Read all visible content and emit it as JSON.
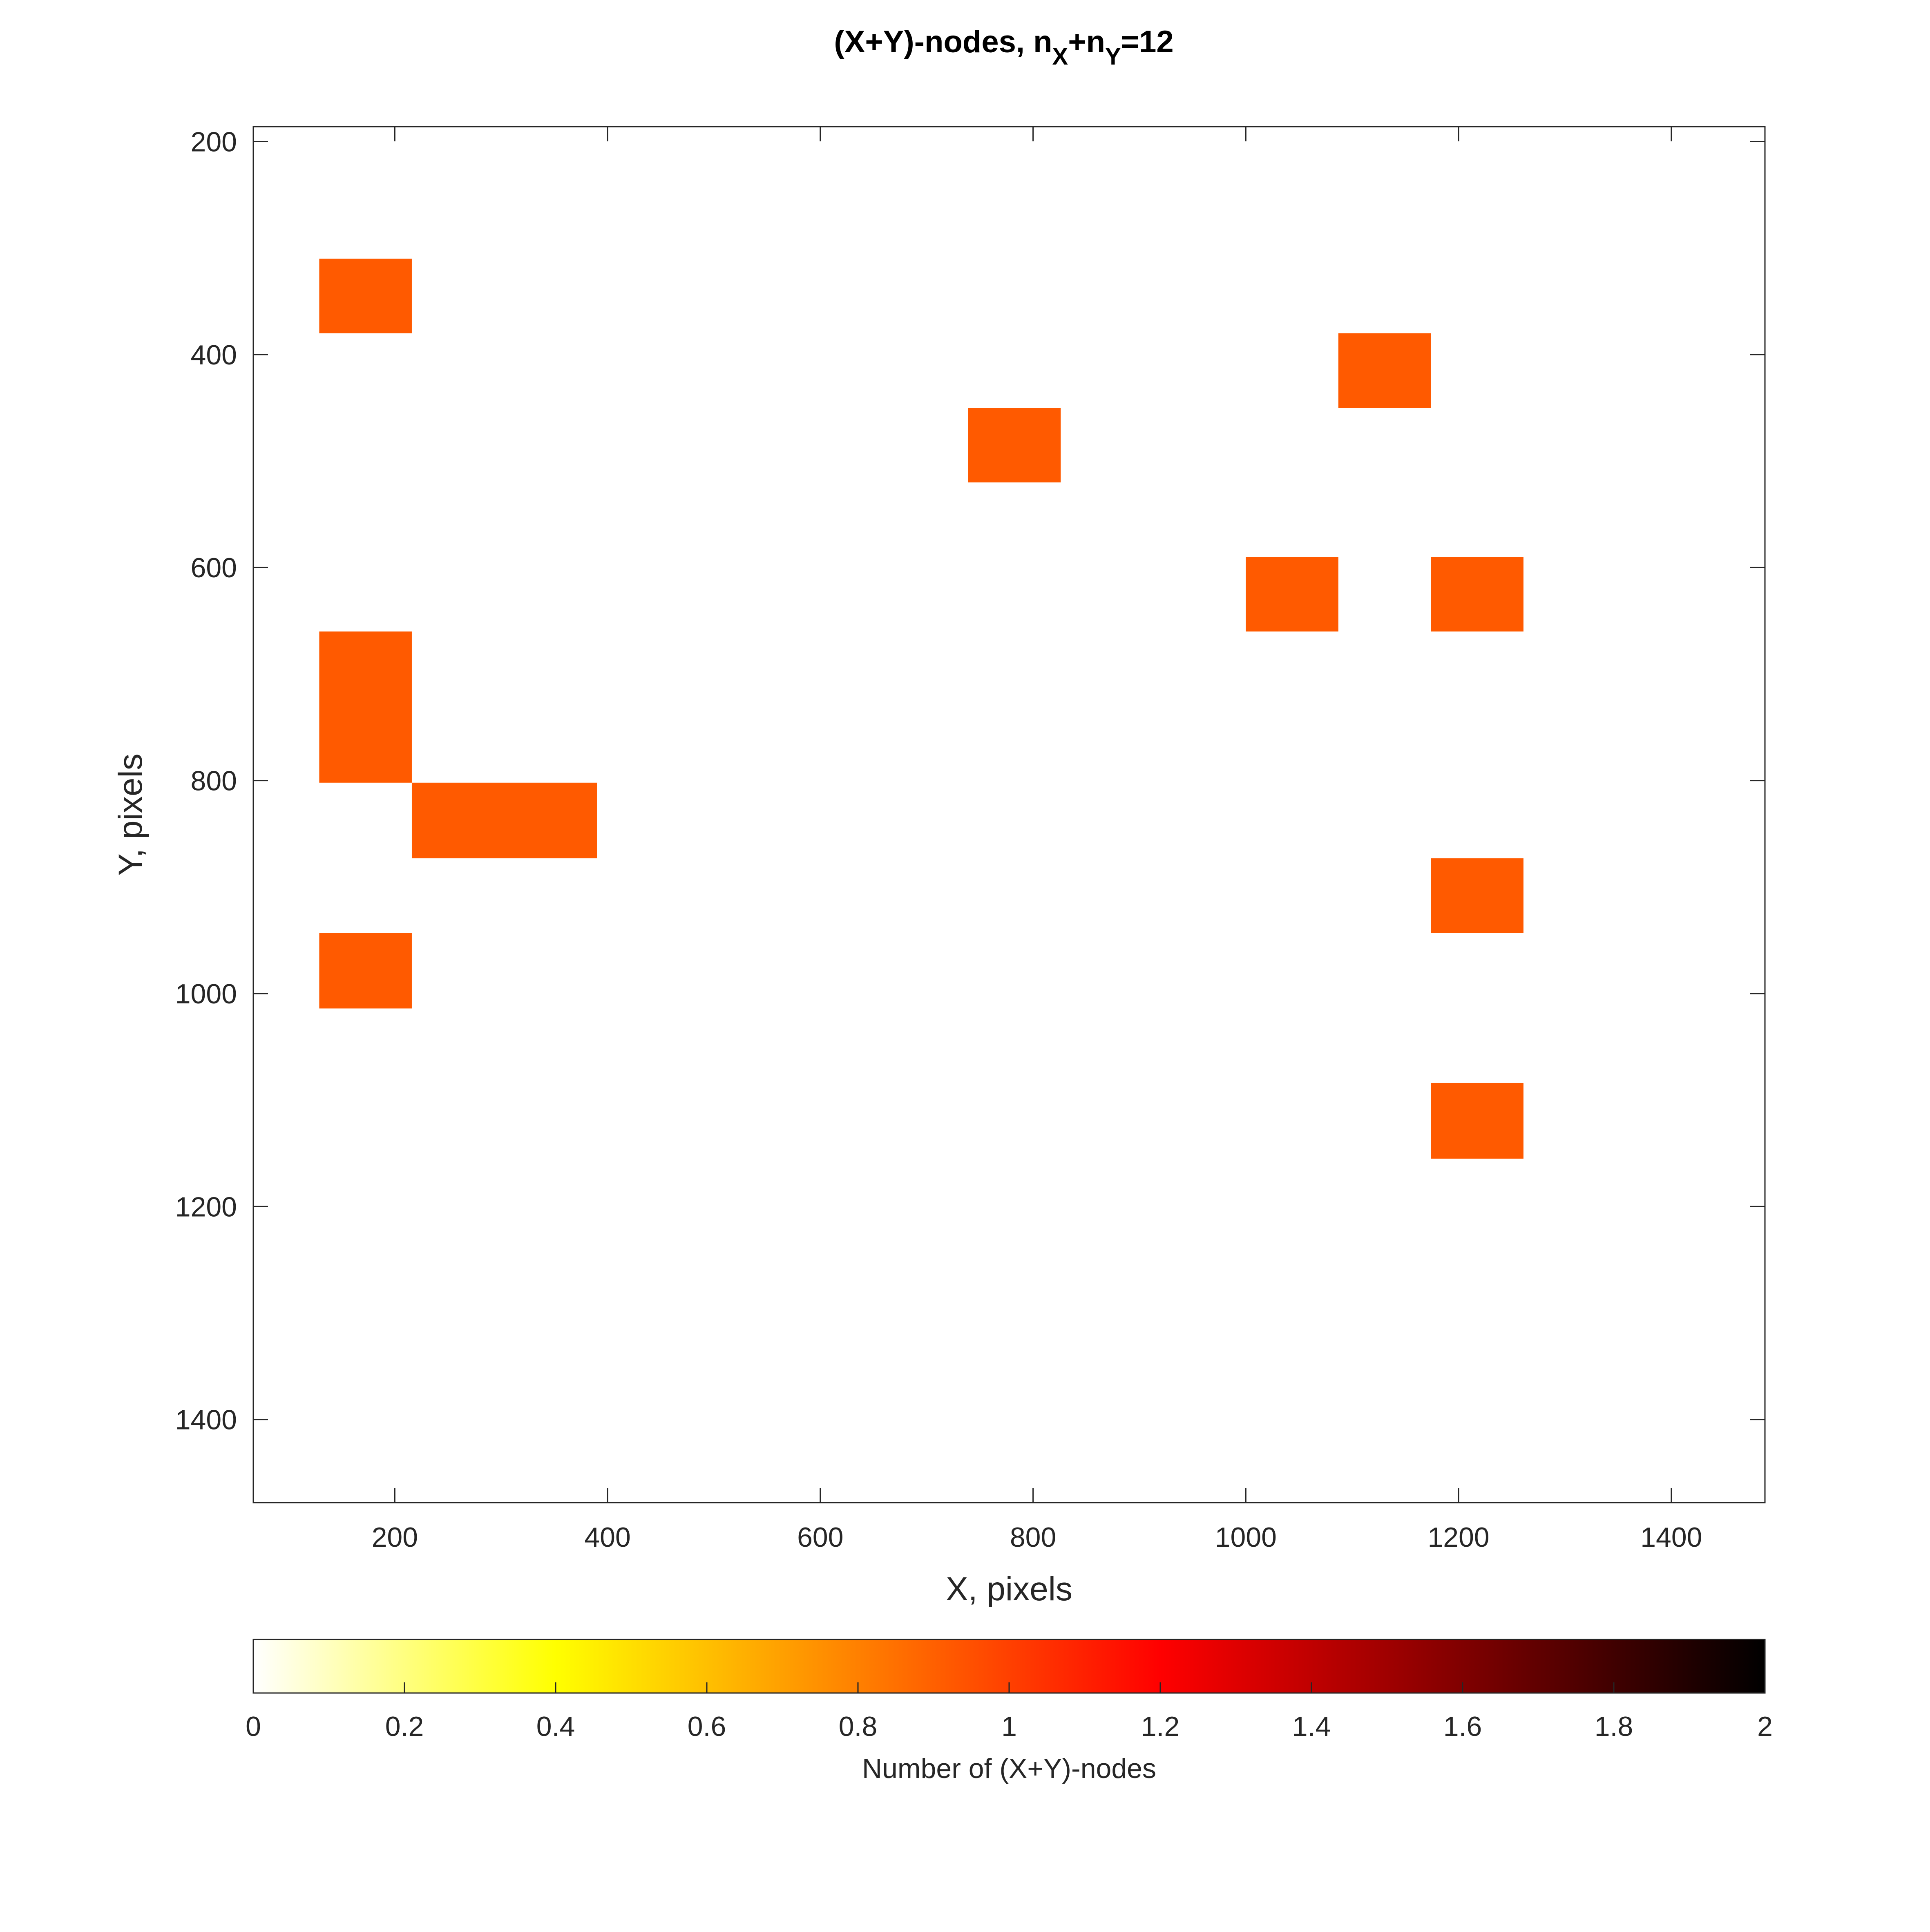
{
  "chart_data": {
    "type": "heatmap",
    "title": {
      "prefix": "(X+Y)-nodes, n",
      "sub1": "X",
      "mid": "+n",
      "sub2": "Y",
      "suffix": "=12"
    },
    "xlabel": "X, pixels",
    "ylabel": "Y, pixels",
    "xlim": [
      67,
      1488
    ],
    "ylim": [
      186,
      1478
    ],
    "y_reversed": true,
    "xticks": [
      200,
      400,
      600,
      800,
      1000,
      1200,
      1400
    ],
    "yticks": [
      200,
      400,
      600,
      800,
      1000,
      1200,
      1400
    ],
    "grid": false,
    "cells": [
      {
        "x": [
          129,
          216
        ],
        "y": [
          310,
          380
        ],
        "value": 1
      },
      {
        "x": [
          739,
          826
        ],
        "y": [
          450,
          520
        ],
        "value": 1
      },
      {
        "x": [
          1087,
          1174
        ],
        "y": [
          380,
          450
        ],
        "value": 1
      },
      {
        "x": [
          1000,
          1087
        ],
        "y": [
          590,
          660
        ],
        "value": 1
      },
      {
        "x": [
          1174,
          1261
        ],
        "y": [
          590,
          660
        ],
        "value": 1
      },
      {
        "x": [
          129,
          216
        ],
        "y": [
          660,
          802
        ],
        "value": 1
      },
      {
        "x": [
          216,
          390
        ],
        "y": [
          802,
          873
        ],
        "value": 1
      },
      {
        "x": [
          1174,
          1261
        ],
        "y": [
          873,
          943
        ],
        "value": 1
      },
      {
        "x": [
          129,
          216
        ],
        "y": [
          943,
          1014
        ],
        "value": 1
      },
      {
        "x": [
          1174,
          1261
        ],
        "y": [
          1084,
          1155
        ],
        "value": 1
      }
    ],
    "colorbar": {
      "label": "Number of (X+Y)-nodes",
      "range": [
        0,
        2
      ],
      "ticks": [
        0,
        0.2,
        0.4,
        0.6,
        0.8,
        1,
        1.2,
        1.4,
        1.6,
        1.8,
        2
      ],
      "tick_labels": [
        "0",
        "0.2",
        "0.4",
        "0.6",
        "0.8",
        "1",
        "1.2",
        "1.4",
        "1.6",
        "1.8",
        "2"
      ],
      "colormap": "hot (reversed)",
      "cell_color": "#ff5a00",
      "color_stops": [
        "#ffffff",
        "#ffff00",
        "#ff8000",
        "#ff0000",
        "#800000",
        "#000000"
      ]
    }
  }
}
